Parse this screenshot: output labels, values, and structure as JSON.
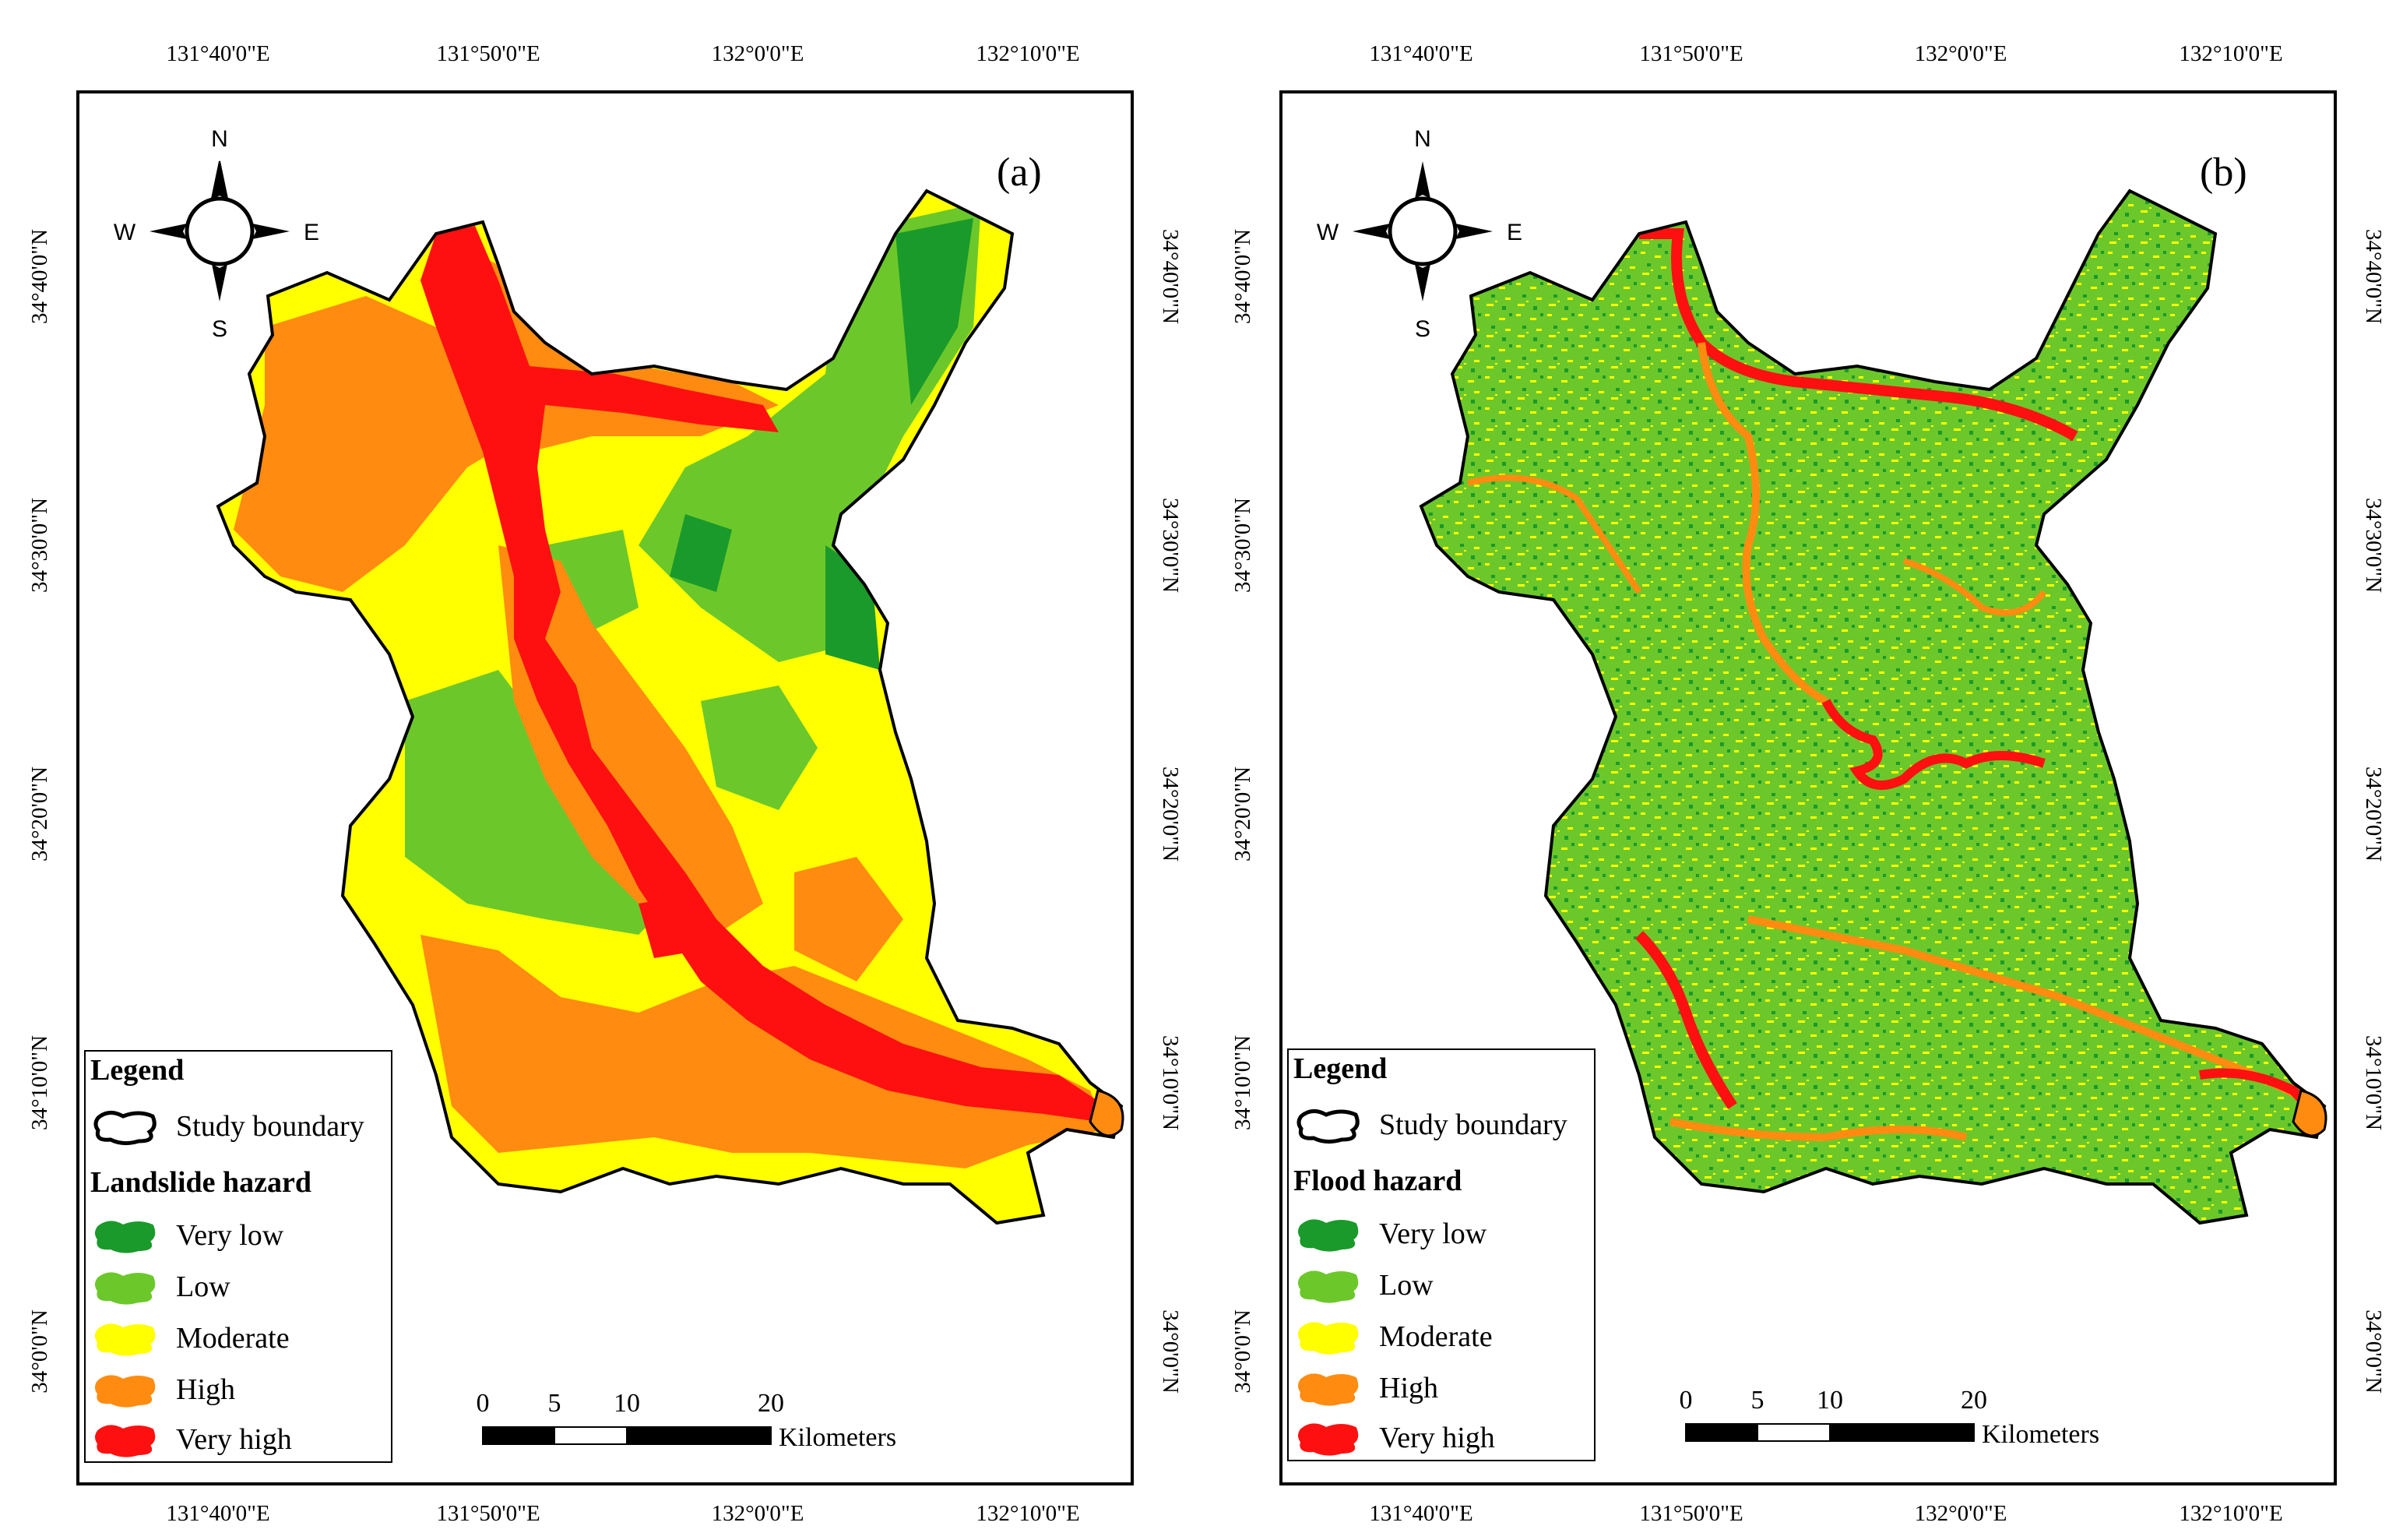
{
  "panels": [
    {
      "label": "(a)",
      "hazard_title": "Landslide hazard",
      "palette": [
        "#1a9a2a",
        "#6cc82a",
        "#ffff00",
        "#ff8c10",
        "#ff1010"
      ]
    },
    {
      "label": "(b)",
      "hazard_title": "Flood hazard",
      "palette": [
        "#1a9a2a",
        "#6cc82a",
        "#ffff00",
        "#ff8c10",
        "#ff1010"
      ]
    }
  ],
  "legend": {
    "title": "Legend",
    "boundary_label": "Study boundary",
    "classes": [
      "Very low",
      "Low",
      "Moderate",
      "High",
      "Very high"
    ],
    "class_colors": [
      "#1a9a2a",
      "#6cc82a",
      "#ffff00",
      "#ff8c10",
      "#ff1010"
    ]
  },
  "graticule": {
    "longitudes": [
      "131°40'0\"E",
      "131°50'0\"E",
      "132°0'0\"E",
      "132°10'0\"E"
    ],
    "latitudes": [
      "34°40'0\"N",
      "34°30'0\"N",
      "34°20'0\"N",
      "34°10'0\"N",
      "34°0'0\"N"
    ]
  },
  "compass": {
    "n": "N",
    "s": "S",
    "e": "E",
    "w": "W"
  },
  "scale_bar": {
    "ticks": [
      "0",
      "5",
      "10",
      "20"
    ],
    "unit": "Kilometers"
  }
}
